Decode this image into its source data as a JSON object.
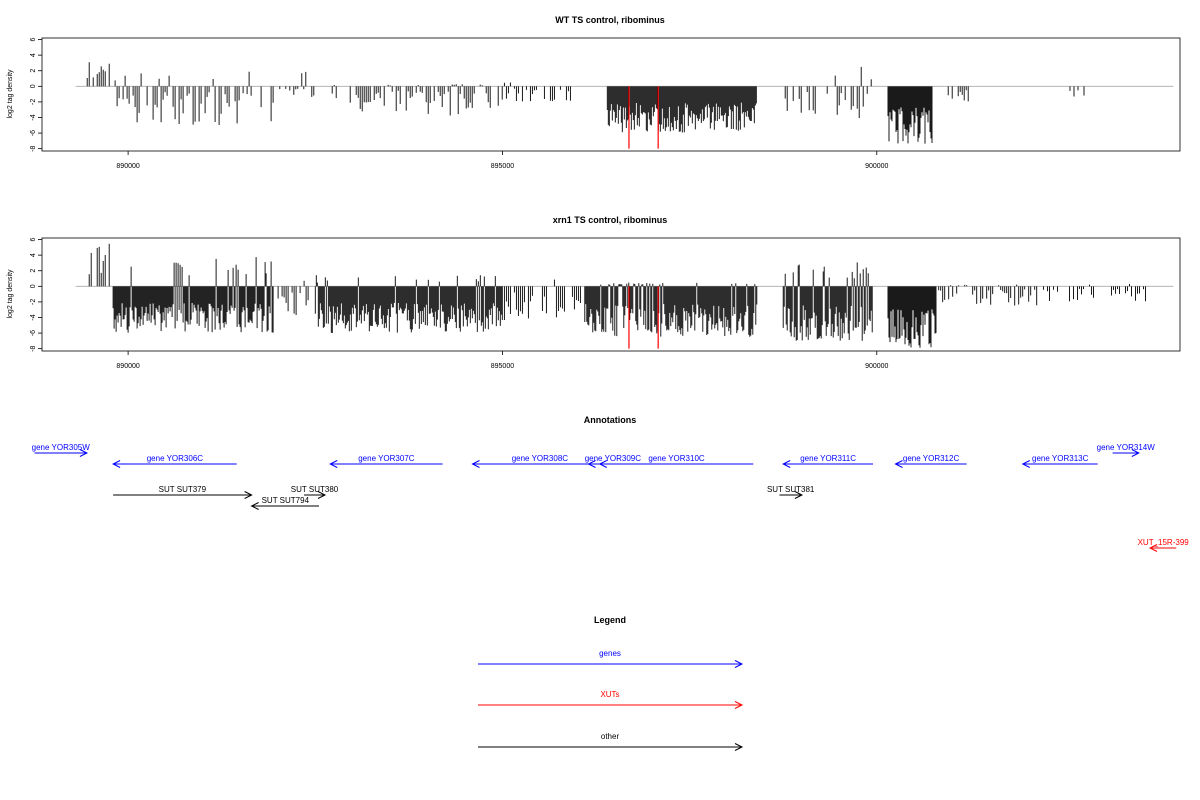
{
  "chart_data": [
    {
      "type": "bar",
      "title": "WT TS control, ribominus",
      "xlabel": "",
      "ylabel": "log2 tag density",
      "xlim": [
        888850,
        904050
      ],
      "ylim": [
        -8.3,
        6.2
      ],
      "yticks": [
        6,
        4,
        2,
        0,
        -2,
        -4,
        -6,
        -8
      ],
      "xticks": [
        890000,
        895000,
        900000
      ],
      "xtick_labels": [
        "890000",
        "895000",
        "900000"
      ],
      "grid": false,
      "color": "#000000",
      "highlight_color": "#ff0000",
      "highlights": [
        {
          "x": 896690,
          "y": -8
        },
        {
          "x": 897080,
          "y": -8
        }
      ],
      "segments": [
        {
          "x0": 889400,
          "x1": 889800,
          "max": 3.5,
          "seed": 11
        },
        {
          "x0": 889800,
          "x1": 891950,
          "min": -5.0,
          "pos": 2.0,
          "seed": 12
        },
        {
          "x0": 892000,
          "x1": 892500,
          "min": -1.6,
          "pos": 2.0,
          "seed": 13
        },
        {
          "x0": 892700,
          "x1": 895000,
          "min": -3.8,
          "pos": 0.3,
          "seed": 14
        },
        {
          "x0": 895000,
          "x1": 896000,
          "min": -2.0,
          "pos": 1.0,
          "seed": 15
        },
        {
          "x0": 896400,
          "x1": 898400,
          "min": -6.0,
          "pos": 0,
          "dense": true,
          "seed": 16
        },
        {
          "x0": 898750,
          "x1": 899950,
          "min": -4.8,
          "pos": 2.5,
          "seed": 17
        },
        {
          "x0": 900150,
          "x1": 900750,
          "min": -7.5,
          "pos": 0,
          "dense": true,
          "seed": 18
        },
        {
          "x0": 900900,
          "x1": 901250,
          "min": -3.0,
          "pos": 0,
          "seed": 19
        },
        {
          "x0": 901650,
          "x1": 901700,
          "min": -1.5,
          "pos": 0,
          "seed": 20
        },
        {
          "x0": 902500,
          "x1": 902800,
          "min": -1.5,
          "pos": 0,
          "seed": 21
        }
      ]
    },
    {
      "type": "bar",
      "title": "xrn1 TS control, ribominus",
      "xlabel": "",
      "ylabel": "log2 tag density",
      "xlim": [
        888850,
        904050
      ],
      "ylim": [
        -8.3,
        6.2
      ],
      "yticks": [
        6,
        4,
        2,
        0,
        -2,
        -4,
        -6,
        -8
      ],
      "xticks": [
        890000,
        895000,
        900000
      ],
      "xtick_labels": [
        "890000",
        "895000",
        "900000"
      ],
      "grid": false,
      "color": "#000000",
      "highlight_color": "#ff0000",
      "highlights": [
        {
          "x": 896690,
          "y": -8
        },
        {
          "x": 897080,
          "y": -8
        }
      ],
      "segments": [
        {
          "x0": 889400,
          "x1": 889800,
          "max": 5.5,
          "seed": 31
        },
        {
          "x0": 889800,
          "x1": 891950,
          "min": -6.0,
          "pos": 4.0,
          "dense": true,
          "seed": 32
        },
        {
          "x0": 891950,
          "x1": 892500,
          "min": -4.0,
          "pos": 2.0,
          "seed": 33
        },
        {
          "x0": 892500,
          "x1": 895000,
          "min": -6.0,
          "pos": 1.5,
          "dense": true,
          "seed": 34
        },
        {
          "x0": 895000,
          "x1": 896100,
          "min": -4.5,
          "pos": 1.0,
          "seed": 35
        },
        {
          "x0": 896100,
          "x1": 898400,
          "min": -6.5,
          "pos": 0.5,
          "dense": true,
          "seed": 36
        },
        {
          "x0": 898750,
          "x1": 899950,
          "min": -7.0,
          "pos": 3.2,
          "dense": true,
          "seed": 37
        },
        {
          "x0": 900150,
          "x1": 900800,
          "min": -8.0,
          "pos": 0,
          "dense": true,
          "seed": 38
        },
        {
          "x0": 900800,
          "x1": 902200,
          "min": -2.5,
          "pos": 0.3,
          "seed": 39
        },
        {
          "x0": 902200,
          "x1": 903600,
          "min": -2.0,
          "pos": 0.5,
          "seed": 40
        },
        {
          "x0": 903950,
          "x1": 903960,
          "max": 0.7,
          "seed": 41
        }
      ]
    }
  ],
  "annotations": {
    "title": "Annotations",
    "items": [
      {
        "label": "gene YOR305W",
        "x0": 888750,
        "x1": 889450,
        "dir": "right",
        "row": 0,
        "color": "#0000ff"
      },
      {
        "label": "gene YOR306C",
        "x0": 889800,
        "x1": 891450,
        "dir": "left",
        "row": 1,
        "color": "#0000ff"
      },
      {
        "label": "gene YOR307C",
        "x0": 892700,
        "x1": 894200,
        "dir": "left",
        "row": 1,
        "color": "#0000ff"
      },
      {
        "label": "gene YOR308C",
        "x0": 894600,
        "x1": 896400,
        "dir": "left",
        "row": 1,
        "color": "#0000ff"
      },
      {
        "label": "gene YOR309C",
        "x0": 896150,
        "x1": 896800,
        "dir": "left",
        "row": 1,
        "color": "#0000ff"
      },
      {
        "label": "gene YOR310C",
        "x0": 896300,
        "x1": 898350,
        "dir": "left",
        "row": 1,
        "color": "#0000ff"
      },
      {
        "label": "gene YOR311C",
        "x0": 898750,
        "x1": 899950,
        "dir": "left",
        "row": 1,
        "color": "#0000ff"
      },
      {
        "label": "gene YOR312C",
        "x0": 900250,
        "x1": 901200,
        "dir": "left",
        "row": 1,
        "color": "#0000ff"
      },
      {
        "label": "gene YOR313C",
        "x0": 901950,
        "x1": 902950,
        "dir": "left",
        "row": 1,
        "color": "#0000ff"
      },
      {
        "label": "gene YOR314W",
        "x0": 903150,
        "x1": 903500,
        "dir": "right",
        "row": 0,
        "color": "#0000ff"
      },
      {
        "label": "SUT SUT379",
        "x0": 889800,
        "x1": 891650,
        "dir": "right",
        "row": 2,
        "color": "#000000"
      },
      {
        "label": "SUT SUT380",
        "x0": 892350,
        "x1": 892630,
        "dir": "right",
        "row": 2,
        "color": "#000000"
      },
      {
        "label": "SUT SUT794",
        "x0": 891650,
        "x1": 892550,
        "dir": "left",
        "row": 3,
        "color": "#000000"
      },
      {
        "label": "SUT SUT381",
        "x0": 898700,
        "x1": 899000,
        "dir": "right",
        "row": 2,
        "color": "#000000"
      },
      {
        "label": "XUT_15R-399",
        "x0": 903650,
        "x1": 904000,
        "dir": "left",
        "row": 4,
        "color": "#ff0000"
      }
    ]
  },
  "legend": {
    "title": "Legend",
    "items": [
      {
        "label": "genes",
        "color": "#0000ff"
      },
      {
        "label": "XUTs",
        "color": "#ff0000"
      },
      {
        "label": "other",
        "color": "#000000"
      }
    ]
  }
}
